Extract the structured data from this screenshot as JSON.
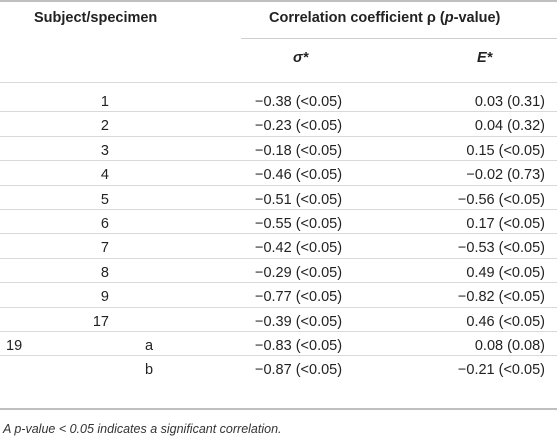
{
  "header": {
    "subject_col": "Subject/specimen",
    "corr_col_prefix": "Correlation coefficient ρ (",
    "corr_col_italic": "p",
    "corr_col_suffix": "-value)",
    "sigma_col": "σ*",
    "e_col": "E*"
  },
  "rows": [
    {
      "subject": "1",
      "sigma": "−0.38 (<0.05)",
      "e": "0.03 (0.31)"
    },
    {
      "subject": "2",
      "sigma": "−0.23 (<0.05)",
      "e": "0.04 (0.32)"
    },
    {
      "subject": "3",
      "sigma": "−0.18 (<0.05)",
      "e": "0.15 (<0.05)"
    },
    {
      "subject": "4",
      "sigma": "−0.46 (<0.05)",
      "e": "−0.02 (0.73)"
    },
    {
      "subject": "5",
      "sigma": "−0.51 (<0.05)",
      "e": "−0.56 (<0.05)"
    },
    {
      "subject": "6",
      "sigma": "−0.55 (<0.05)",
      "e": "0.17 (<0.05)"
    },
    {
      "subject": "7",
      "sigma": "−0.42 (<0.05)",
      "e": "−0.53 (<0.05)"
    },
    {
      "subject": "8",
      "sigma": "−0.29 (<0.05)",
      "e": "0.49 (<0.05)"
    },
    {
      "subject": "9",
      "sigma": "−0.77 (<0.05)",
      "e": "−0.82 (<0.05)"
    },
    {
      "subject": "17",
      "sigma": "−0.39 (<0.05)",
      "e": "0.46 (<0.05)"
    }
  ],
  "group_rows": {
    "subject": "19",
    "items": [
      {
        "specimen": "a",
        "sigma": "−0.83 (<0.05)",
        "e": "0.08 (0.08)"
      },
      {
        "specimen": "b",
        "sigma": "−0.87 (<0.05)",
        "e": "−0.21 (<0.05)"
      }
    ]
  },
  "footnote": "A p-value < 0.05 indicates a significant correlation."
}
